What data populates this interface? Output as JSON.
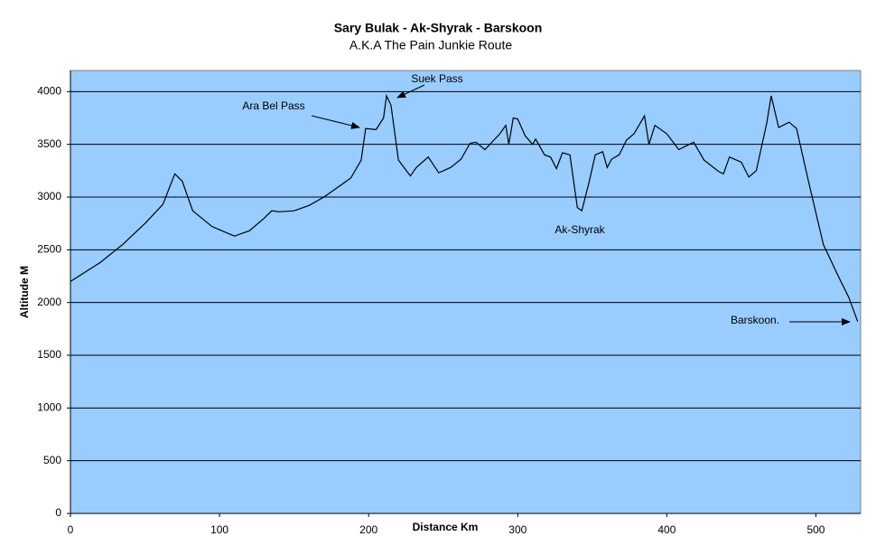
{
  "chart_data": {
    "type": "line",
    "title": "Sary Bulak - Ak-Shyrak - Barskoon",
    "subtitle": "A.K.A The Pain Junkie Route",
    "x_label": "Distance Km",
    "y_label": "Altitude M",
    "x": [
      0,
      20,
      35,
      50,
      62,
      70,
      75,
      82,
      95,
      110,
      120,
      130,
      135,
      140,
      150,
      160,
      170,
      180,
      188,
      195,
      198,
      205,
      210,
      212,
      215,
      220,
      228,
      232,
      240,
      247,
      255,
      262,
      268,
      272,
      278,
      288,
      292,
      294,
      297,
      300,
      305,
      310,
      312,
      318,
      322,
      326,
      330,
      335,
      340,
      343,
      348,
      352,
      357,
      360,
      363,
      368,
      373,
      378,
      385,
      388,
      392,
      400,
      408,
      418,
      425,
      435,
      438,
      442,
      450,
      455,
      460,
      467,
      470,
      475,
      482,
      487,
      495,
      505,
      515,
      522,
      528
    ],
    "series": [
      {
        "name": "Altitude",
        "color": "#000000",
        "values": [
          2200,
          2380,
          2550,
          2750,
          2930,
          3220,
          3150,
          2870,
          2720,
          2630,
          2680,
          2800,
          2870,
          2860,
          2870,
          2920,
          3000,
          3100,
          3180,
          3350,
          3650,
          3640,
          3750,
          3960,
          3870,
          3350,
          3200,
          3280,
          3380,
          3230,
          3280,
          3360,
          3510,
          3520,
          3450,
          3600,
          3680,
          3500,
          3750,
          3740,
          3580,
          3500,
          3550,
          3400,
          3380,
          3270,
          3420,
          3400,
          2900,
          2870,
          3150,
          3400,
          3430,
          3280,
          3360,
          3400,
          3540,
          3600,
          3770,
          3500,
          3680,
          3600,
          3450,
          3520,
          3350,
          3240,
          3220,
          3380,
          3330,
          3190,
          3250,
          3700,
          3960,
          3660,
          3710,
          3650,
          3150,
          2550,
          2250,
          2050,
          1820
        ]
      }
    ],
    "xlim": [
      0,
      530
    ],
    "xticks": [
      0,
      100,
      200,
      300,
      400,
      500
    ],
    "ylim": [
      0,
      4200
    ],
    "yticks": [
      0,
      500,
      1000,
      1500,
      2000,
      2500,
      3000,
      3500,
      4000
    ],
    "grid": true,
    "plot_color": "#99ccff",
    "annotations": [
      "Suek Pass",
      "Ara Bel Pass",
      "Ak-Shyrak",
      "Barskoon."
    ]
  }
}
